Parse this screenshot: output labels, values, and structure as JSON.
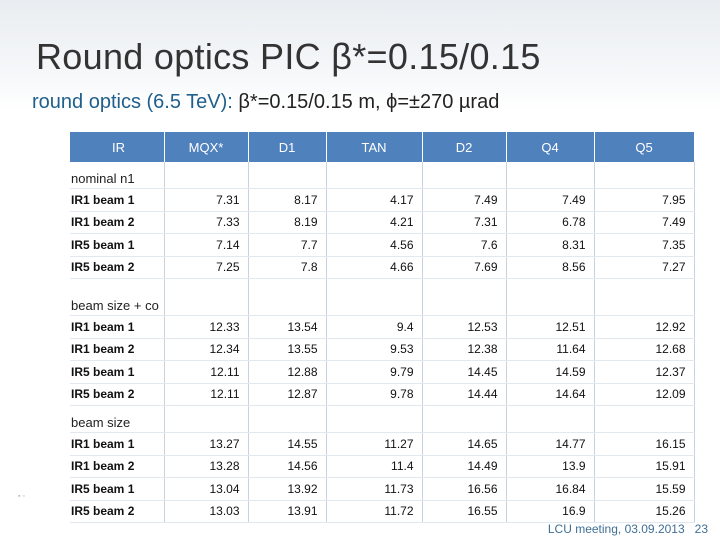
{
  "slide": {
    "title": "Round optics PIC β*=0.15/0.15",
    "subtitle_accent": "round optics (6.5 TeV):",
    "subtitle_rest": " β*=0.15/0.15 m, ϕ=±270 µrad",
    "footer_text": "LCU meeting, 03.09.2013",
    "page_number": "23"
  },
  "table": {
    "columns": [
      "IR",
      "MQX*",
      "D1",
      "TAN",
      "D2",
      "Q4",
      "Q5"
    ],
    "sections": [
      {
        "title": "nominal n1",
        "rows": [
          {
            "label": "IR1 beam 1",
            "values": [
              "7.31",
              "8.17",
              "4.17",
              "7.49",
              "7.49",
              "7.95"
            ]
          },
          {
            "label": "IR1 beam 2",
            "values": [
              "7.33",
              "8.19",
              "4.21",
              "7.31",
              "6.78",
              "7.49"
            ]
          },
          {
            "label": "IR5 beam 1",
            "values": [
              "7.14",
              "7.7",
              "4.56",
              "7.6",
              "8.31",
              "7.35"
            ]
          },
          {
            "label": "IR5 beam 2",
            "values": [
              "7.25",
              "7.8",
              "4.66",
              "7.69",
              "8.56",
              "7.27"
            ]
          }
        ]
      },
      {
        "title": "beam size + co",
        "rows": [
          {
            "label": "IR1 beam 1",
            "values": [
              "12.33",
              "13.54",
              "9.4",
              "12.53",
              "12.51",
              "12.92"
            ]
          },
          {
            "label": "IR1 beam 2",
            "values": [
              "12.34",
              "13.55",
              "9.53",
              "12.38",
              "11.64",
              "12.68"
            ]
          },
          {
            "label": "IR5 beam 1",
            "values": [
              "12.11",
              "12.88",
              "9.79",
              "14.45",
              "14.59",
              "12.37"
            ]
          },
          {
            "label": "IR5 beam 2",
            "values": [
              "12.11",
              "12.87",
              "9.78",
              "14.44",
              "14.64",
              "12.09"
            ]
          }
        ]
      },
      {
        "title": "beam size",
        "rows": [
          {
            "label": "IR1 beam 1",
            "values": [
              "13.27",
              "14.55",
              "11.27",
              "14.65",
              "14.77",
              "16.15"
            ]
          },
          {
            "label": "IR1 beam 2",
            "values": [
              "13.28",
              "14.56",
              "11.4",
              "14.49",
              "13.9",
              "15.91"
            ]
          },
          {
            "label": "IR5 beam 1",
            "values": [
              "13.04",
              "13.92",
              "11.73",
              "16.56",
              "16.84",
              "15.59"
            ]
          },
          {
            "label": "IR5 beam 2",
            "values": [
              "13.03",
              "13.91",
              "11.72",
              "16.55",
              "16.9",
              "15.26"
            ]
          }
        ]
      }
    ]
  }
}
